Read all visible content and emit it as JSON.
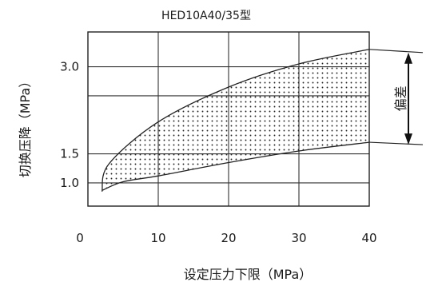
{
  "chart_data": {
    "type": "area",
    "title": "HED10A40/35型",
    "xlabel": "设定压力下限（MPa）",
    "ylabel": "切换压降（MPa）",
    "xlim": [
      0,
      40
    ],
    "ylim": [
      0.6,
      3.6
    ],
    "x_ticks": [
      "0",
      "10",
      "20",
      "30",
      "40"
    ],
    "y_ticks": [
      {
        "value": 3.0,
        "label": "3.0"
      },
      {
        "value": 1.5,
        "label": "1.5"
      },
      {
        "value": 1.0,
        "label": "1.0"
      }
    ],
    "grid_y": [
      1.0,
      1.5,
      2.5,
      3.0
    ],
    "grid": true,
    "series": [
      {
        "x": [
          2,
          3,
          10,
          20,
          30,
          40
        ],
        "y": [
          0.85,
          1.33,
          2.05,
          2.65,
          3.05,
          3.3
        ]
      },
      {
        "x": [
          2,
          5,
          10,
          20,
          30,
          40
        ],
        "y": [
          0.87,
          1.02,
          1.12,
          1.35,
          1.55,
          1.7
        ]
      }
    ],
    "deviation_label": "偏差",
    "deviation_range": [
      1.7,
      3.3
    ]
  }
}
